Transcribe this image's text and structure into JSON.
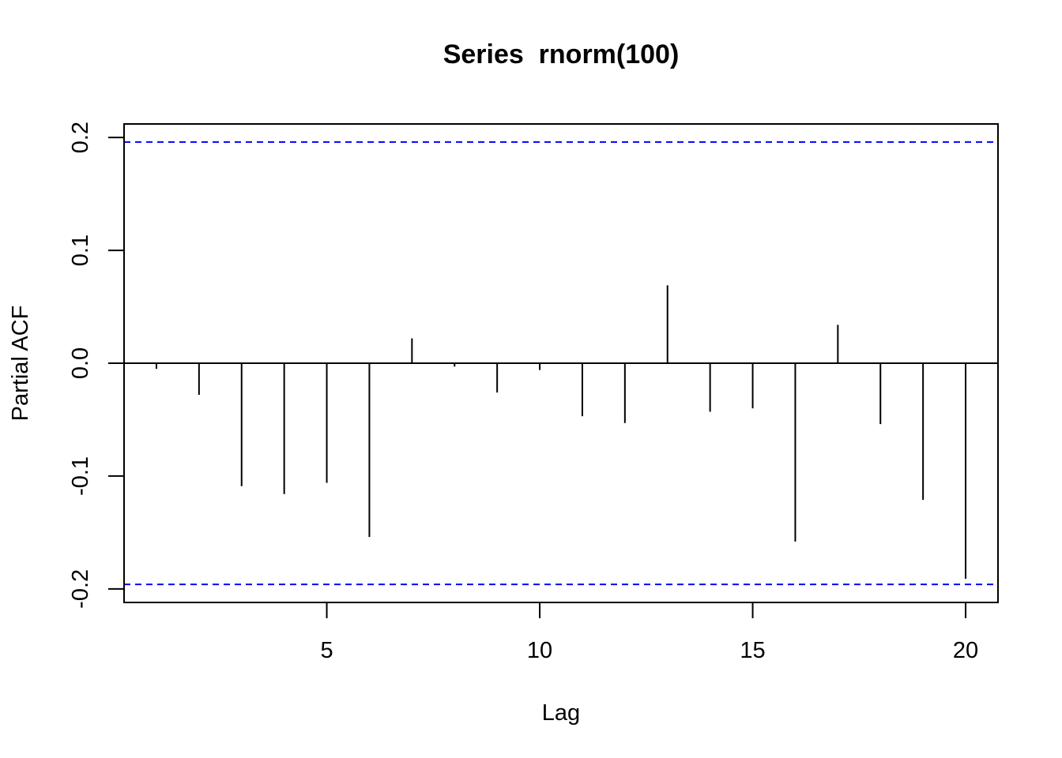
{
  "chart_data": {
    "type": "bar",
    "title": "Series  rnorm(100)",
    "xlabel": "Lag",
    "ylabel": "Partial ACF",
    "x": [
      1,
      2,
      3,
      4,
      5,
      6,
      7,
      8,
      9,
      10,
      11,
      12,
      13,
      14,
      15,
      16,
      17,
      18,
      19,
      20
    ],
    "values": [
      -0.005,
      -0.028,
      -0.109,
      -0.116,
      -0.106,
      -0.154,
      0.022,
      -0.003,
      -0.026,
      -0.006,
      -0.047,
      -0.053,
      0.069,
      -0.043,
      -0.04,
      -0.158,
      0.034,
      -0.054,
      -0.121,
      -0.191
    ],
    "confidence_bounds": [
      0.196,
      -0.196
    ],
    "xlim": [
      0.24,
      20.76
    ],
    "ylim": [
      -0.212,
      0.212
    ],
    "x_ticks": [
      5,
      10,
      15,
      20
    ],
    "y_ticks": [
      -0.2,
      -0.1,
      0.0,
      0.1,
      0.2
    ],
    "x_tick_labels": [
      "5",
      "10",
      "15",
      "20"
    ],
    "y_tick_labels": [
      "-0.2",
      "-0.1",
      "0.0",
      "0.1",
      "0.2"
    ],
    "grid": false,
    "legend": "none",
    "colors": {
      "bars": "#000000",
      "bounds": "#0000ff",
      "zero_line": "#000000"
    }
  }
}
